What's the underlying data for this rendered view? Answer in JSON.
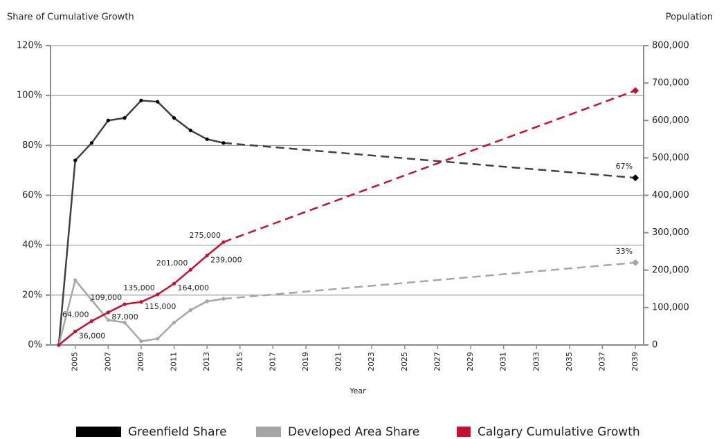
{
  "chart_data": {
    "type": "line",
    "title": "Share of Cumulative Growth",
    "y2_label": "Population",
    "x_label": "Year",
    "x": [
      2004,
      2005,
      2006,
      2007,
      2008,
      2009,
      2010,
      2011,
      2012,
      2013,
      2014,
      2039
    ],
    "dashed_after_x": 2014,
    "series": [
      {
        "name": "Greenfield Share",
        "color": "#404040",
        "legend_color": "#000000",
        "axis": "y",
        "values": [
          0,
          74,
          81,
          90,
          91,
          98,
          97.5,
          91,
          86,
          82.5,
          81,
          67
        ],
        "value_labels": [
          null,
          null,
          null,
          null,
          null,
          null,
          null,
          null,
          null,
          null,
          null,
          "67%"
        ]
      },
      {
        "name": "Developed Area Share",
        "color": "#a6a6a6",
        "legend_color": "#a6a6a6",
        "axis": "y",
        "values": [
          0,
          26,
          18,
          10,
          9,
          1.5,
          2.5,
          9,
          14,
          17.5,
          18.5,
          33
        ],
        "value_labels": [
          null,
          null,
          null,
          null,
          null,
          null,
          null,
          null,
          null,
          null,
          null,
          "33%"
        ]
      },
      {
        "name": "Calgary Cumulative Growth",
        "color": "#c8102e",
        "legend_color": "#c8102e",
        "axis": "y2",
        "values": [
          0,
          36000,
          64000,
          87000,
          109000,
          115000,
          135000,
          164000,
          201000,
          239000,
          275000,
          680000
        ],
        "value_labels": [
          null,
          "36,000",
          "64,000",
          "87,000",
          "109,000",
          "115,000",
          "135,000",
          "164,000",
          "201,000",
          "239,000",
          "275,000",
          null
        ]
      }
    ],
    "xlim": [
      2003.5,
      2039.5
    ],
    "xticks": [
      2005,
      2007,
      2009,
      2011,
      2013,
      2015,
      2017,
      2019,
      2021,
      2023,
      2025,
      2027,
      2029,
      2031,
      2033,
      2035,
      2037,
      2039
    ],
    "ylim": [
      0,
      120
    ],
    "yticks": [
      {
        "value": 0,
        "label": "0%"
      },
      {
        "value": 20,
        "label": "20%"
      },
      {
        "value": 40,
        "label": "40%"
      },
      {
        "value": 60,
        "label": "60%"
      },
      {
        "value": 80,
        "label": "80%"
      },
      {
        "value": 100,
        "label": "100%"
      },
      {
        "value": 120,
        "label": "120%"
      }
    ],
    "y2lim": [
      0,
      800000
    ],
    "y2ticks": [
      0,
      {
        "value": 100000,
        "label": "100,000"
      },
      {
        "value": 200000,
        "label": "200,000"
      },
      {
        "value": 300000,
        "label": "300,000"
      },
      {
        "value": 400000,
        "label": "400,000"
      },
      {
        "value": 500000,
        "label": "500,000"
      },
      {
        "value": 600000,
        "label": "600,000"
      },
      {
        "value": 700000,
        "label": "700,000"
      },
      {
        "value": 800000,
        "label": "800,000"
      }
    ],
    "grid": true
  }
}
